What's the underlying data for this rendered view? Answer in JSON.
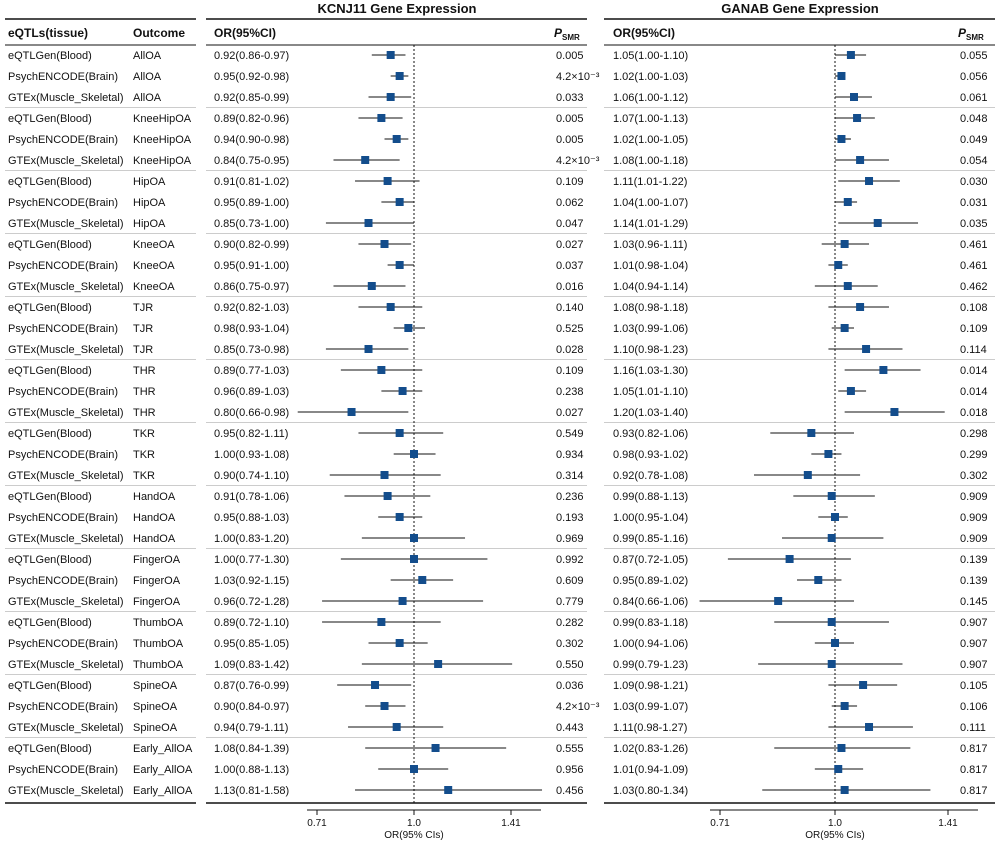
{
  "headers": {
    "col_eqtl": "eQTLs(tissue)",
    "col_outcome": "Outcome",
    "col_or": "OR(95%CI)",
    "col_p_main": "P",
    "col_p_sub": "SMR"
  },
  "chart_data": [
    {
      "type": "forest",
      "title": "KCNJ11 Gene Expression",
      "xlabel": "OR(95% CIs)",
      "x_scale": "log",
      "x_ticks": [
        "0.71",
        "1.0",
        "1.41"
      ],
      "reference_line": 1.0,
      "rows": [
        {
          "or": 0.92,
          "lo": 0.86,
          "hi": 0.97,
          "label": "0.92(0.86-0.97)",
          "p": "0.005"
        },
        {
          "or": 0.95,
          "lo": 0.92,
          "hi": 0.98,
          "label": "0.95(0.92-0.98)",
          "p": "4.2×10⁻³"
        },
        {
          "or": 0.92,
          "lo": 0.85,
          "hi": 0.99,
          "label": "0.92(0.85-0.99)",
          "p": "0.033"
        },
        {
          "or": 0.89,
          "lo": 0.82,
          "hi": 0.96,
          "label": "0.89(0.82-0.96)",
          "p": "0.005"
        },
        {
          "or": 0.94,
          "lo": 0.9,
          "hi": 0.98,
          "label": "0.94(0.90-0.98)",
          "p": "0.005"
        },
        {
          "or": 0.84,
          "lo": 0.75,
          "hi": 0.95,
          "label": "0.84(0.75-0.95)",
          "p": "4.2×10⁻³"
        },
        {
          "or": 0.91,
          "lo": 0.81,
          "hi": 1.02,
          "label": "0.91(0.81-1.02)",
          "p": "0.109"
        },
        {
          "or": 0.95,
          "lo": 0.89,
          "hi": 1.0,
          "label": "0.95(0.89-1.00)",
          "p": "0.062"
        },
        {
          "or": 0.85,
          "lo": 0.73,
          "hi": 1.0,
          "label": "0.85(0.73-1.00)",
          "p": "0.047"
        },
        {
          "or": 0.9,
          "lo": 0.82,
          "hi": 0.99,
          "label": "0.90(0.82-0.99)",
          "p": "0.027"
        },
        {
          "or": 0.95,
          "lo": 0.91,
          "hi": 1.0,
          "label": "0.95(0.91-1.00)",
          "p": "0.037"
        },
        {
          "or": 0.86,
          "lo": 0.75,
          "hi": 0.97,
          "label": "0.86(0.75-0.97)",
          "p": "0.016"
        },
        {
          "or": 0.92,
          "lo": 0.82,
          "hi": 1.03,
          "label": "0.92(0.82-1.03)",
          "p": "0.140"
        },
        {
          "or": 0.98,
          "lo": 0.93,
          "hi": 1.04,
          "label": "0.98(0.93-1.04)",
          "p": "0.525"
        },
        {
          "or": 0.85,
          "lo": 0.73,
          "hi": 0.98,
          "label": "0.85(0.73-0.98)",
          "p": "0.028"
        },
        {
          "or": 0.89,
          "lo": 0.77,
          "hi": 1.03,
          "label": "0.89(0.77-1.03)",
          "p": "0.109"
        },
        {
          "or": 0.96,
          "lo": 0.89,
          "hi": 1.03,
          "label": "0.96(0.89-1.03)",
          "p": "0.238"
        },
        {
          "or": 0.8,
          "lo": 0.66,
          "hi": 0.98,
          "label": "0.80(0.66-0.98)",
          "p": "0.027"
        },
        {
          "or": 0.95,
          "lo": 0.82,
          "hi": 1.11,
          "label": "0.95(0.82-1.11)",
          "p": "0.549"
        },
        {
          "or": 1.0,
          "lo": 0.93,
          "hi": 1.08,
          "label": "1.00(0.93-1.08)",
          "p": "0.934"
        },
        {
          "or": 0.9,
          "lo": 0.74,
          "hi": 1.1,
          "label": "0.90(0.74-1.10)",
          "p": "0.314"
        },
        {
          "or": 0.91,
          "lo": 0.78,
          "hi": 1.06,
          "label": "0.91(0.78-1.06)",
          "p": "0.236"
        },
        {
          "or": 0.95,
          "lo": 0.88,
          "hi": 1.03,
          "label": "0.95(0.88-1.03)",
          "p": "0.193"
        },
        {
          "or": 1.0,
          "lo": 0.83,
          "hi": 1.2,
          "label": "1.00(0.83-1.20)",
          "p": "0.969"
        },
        {
          "or": 1.0,
          "lo": 0.77,
          "hi": 1.3,
          "label": "1.00(0.77-1.30)",
          "p": "0.992"
        },
        {
          "or": 1.03,
          "lo": 0.92,
          "hi": 1.15,
          "label": "1.03(0.92-1.15)",
          "p": "0.609"
        },
        {
          "or": 0.96,
          "lo": 0.72,
          "hi": 1.28,
          "label": "0.96(0.72-1.28)",
          "p": "0.779"
        },
        {
          "or": 0.89,
          "lo": 0.72,
          "hi": 1.1,
          "label": "0.89(0.72-1.10)",
          "p": "0.282"
        },
        {
          "or": 0.95,
          "lo": 0.85,
          "hi": 1.05,
          "label": "0.95(0.85-1.05)",
          "p": "0.302"
        },
        {
          "or": 1.09,
          "lo": 0.83,
          "hi": 1.42,
          "label": "1.09(0.83-1.42)",
          "p": "0.550"
        },
        {
          "or": 0.87,
          "lo": 0.76,
          "hi": 0.99,
          "label": "0.87(0.76-0.99)",
          "p": "0.036"
        },
        {
          "or": 0.9,
          "lo": 0.84,
          "hi": 0.97,
          "label": "0.90(0.84-0.97)",
          "p": "4.2×10⁻³"
        },
        {
          "or": 0.94,
          "lo": 0.79,
          "hi": 1.11,
          "label": "0.94(0.79-1.11)",
          "p": "0.443"
        },
        {
          "or": 1.08,
          "lo": 0.84,
          "hi": 1.39,
          "label": "1.08(0.84-1.39)",
          "p": "0.555"
        },
        {
          "or": 1.0,
          "lo": 0.88,
          "hi": 1.13,
          "label": "1.00(0.88-1.13)",
          "p": "0.956"
        },
        {
          "or": 1.13,
          "lo": 0.81,
          "hi": 1.58,
          "label": "1.13(0.81-1.58)",
          "p": "0.456"
        }
      ]
    },
    {
      "type": "forest",
      "title": "GANAB Gene Expression",
      "xlabel": "OR(95% CIs)",
      "x_scale": "log",
      "x_ticks": [
        "0.71",
        "1.0",
        "1.41"
      ],
      "reference_line": 1.0,
      "rows": [
        {
          "or": 1.05,
          "lo": 1.0,
          "hi": 1.1,
          "label": "1.05(1.00-1.10)",
          "p": "0.055"
        },
        {
          "or": 1.02,
          "lo": 1.0,
          "hi": 1.03,
          "label": "1.02(1.00-1.03)",
          "p": "0.056"
        },
        {
          "or": 1.06,
          "lo": 1.0,
          "hi": 1.12,
          "label": "1.06(1.00-1.12)",
          "p": "0.061"
        },
        {
          "or": 1.07,
          "lo": 1.0,
          "hi": 1.13,
          "label": "1.07(1.00-1.13)",
          "p": "0.048"
        },
        {
          "or": 1.02,
          "lo": 1.0,
          "hi": 1.05,
          "label": "1.02(1.00-1.05)",
          "p": "0.049"
        },
        {
          "or": 1.08,
          "lo": 1.0,
          "hi": 1.18,
          "label": "1.08(1.00-1.18)",
          "p": "0.054"
        },
        {
          "or": 1.11,
          "lo": 1.01,
          "hi": 1.22,
          "label": "1.11(1.01-1.22)",
          "p": "0.030"
        },
        {
          "or": 1.04,
          "lo": 1.0,
          "hi": 1.07,
          "label": "1.04(1.00-1.07)",
          "p": "0.031"
        },
        {
          "or": 1.14,
          "lo": 1.01,
          "hi": 1.29,
          "label": "1.14(1.01-1.29)",
          "p": "0.035"
        },
        {
          "or": 1.03,
          "lo": 0.96,
          "hi": 1.11,
          "label": "1.03(0.96-1.11)",
          "p": "0.461"
        },
        {
          "or": 1.01,
          "lo": 0.98,
          "hi": 1.04,
          "label": "1.01(0.98-1.04)",
          "p": "0.461"
        },
        {
          "or": 1.04,
          "lo": 0.94,
          "hi": 1.14,
          "label": "1.04(0.94-1.14)",
          "p": "0.462"
        },
        {
          "or": 1.08,
          "lo": 0.98,
          "hi": 1.18,
          "label": "1.08(0.98-1.18)",
          "p": "0.108"
        },
        {
          "or": 1.03,
          "lo": 0.99,
          "hi": 1.06,
          "label": "1.03(0.99-1.06)",
          "p": "0.109"
        },
        {
          "or": 1.1,
          "lo": 0.98,
          "hi": 1.23,
          "label": "1.10(0.98-1.23)",
          "p": "0.114"
        },
        {
          "or": 1.16,
          "lo": 1.03,
          "hi": 1.3,
          "label": "1.16(1.03-1.30)",
          "p": "0.014"
        },
        {
          "or": 1.05,
          "lo": 1.01,
          "hi": 1.1,
          "label": "1.05(1.01-1.10)",
          "p": "0.014"
        },
        {
          "or": 1.2,
          "lo": 1.03,
          "hi": 1.4,
          "label": "1.20(1.03-1.40)",
          "p": "0.018"
        },
        {
          "or": 0.93,
          "lo": 0.82,
          "hi": 1.06,
          "label": "0.93(0.82-1.06)",
          "p": "0.298"
        },
        {
          "or": 0.98,
          "lo": 0.93,
          "hi": 1.02,
          "label": "0.98(0.93-1.02)",
          "p": "0.299"
        },
        {
          "or": 0.92,
          "lo": 0.78,
          "hi": 1.08,
          "label": "0.92(0.78-1.08)",
          "p": "0.302"
        },
        {
          "or": 0.99,
          "lo": 0.88,
          "hi": 1.13,
          "label": "0.99(0.88-1.13)",
          "p": "0.909"
        },
        {
          "or": 1.0,
          "lo": 0.95,
          "hi": 1.04,
          "label": "1.00(0.95-1.04)",
          "p": "0.909"
        },
        {
          "or": 0.99,
          "lo": 0.85,
          "hi": 1.16,
          "label": "0.99(0.85-1.16)",
          "p": "0.909"
        },
        {
          "or": 0.87,
          "lo": 0.72,
          "hi": 1.05,
          "label": "0.87(0.72-1.05)",
          "p": "0.139"
        },
        {
          "or": 0.95,
          "lo": 0.89,
          "hi": 1.02,
          "label": "0.95(0.89-1.02)",
          "p": "0.139"
        },
        {
          "or": 0.84,
          "lo": 0.66,
          "hi": 1.06,
          "label": "0.84(0.66-1.06)",
          "p": "0.145"
        },
        {
          "or": 0.99,
          "lo": 0.83,
          "hi": 1.18,
          "label": "0.99(0.83-1.18)",
          "p": "0.907"
        },
        {
          "or": 1.0,
          "lo": 0.94,
          "hi": 1.06,
          "label": "1.00(0.94-1.06)",
          "p": "0.907"
        },
        {
          "or": 0.99,
          "lo": 0.79,
          "hi": 1.23,
          "label": "0.99(0.79-1.23)",
          "p": "0.907"
        },
        {
          "or": 1.09,
          "lo": 0.98,
          "hi": 1.21,
          "label": "1.09(0.98-1.21)",
          "p": "0.105"
        },
        {
          "or": 1.03,
          "lo": 0.99,
          "hi": 1.07,
          "label": "1.03(0.99-1.07)",
          "p": "0.106"
        },
        {
          "or": 1.11,
          "lo": 0.98,
          "hi": 1.27,
          "label": "1.11(0.98-1.27)",
          "p": "0.111"
        },
        {
          "or": 1.02,
          "lo": 0.83,
          "hi": 1.26,
          "label": "1.02(0.83-1.26)",
          "p": "0.817"
        },
        {
          "or": 1.01,
          "lo": 0.94,
          "hi": 1.09,
          "label": "1.01(0.94-1.09)",
          "p": "0.817"
        },
        {
          "or": 1.03,
          "lo": 0.8,
          "hi": 1.34,
          "label": "1.03(0.80-1.34)",
          "p": "0.817"
        }
      ]
    }
  ],
  "tissues": [
    "eQTLGen(Blood)",
    "PsychENCODE(Brain)",
    "GTEx(Muscle_Skeletal)"
  ],
  "outcomes": [
    "AllOA",
    "KneeHipOA",
    "HipOA",
    "KneeOA",
    "TJR",
    "THR",
    "TKR",
    "HandOA",
    "FingerOA",
    "ThumbOA",
    "SpineOA",
    "Early_AllOA"
  ],
  "colors": {
    "marker": "#134d8c",
    "line": "#111111",
    "grid": "#bbbbbb"
  }
}
